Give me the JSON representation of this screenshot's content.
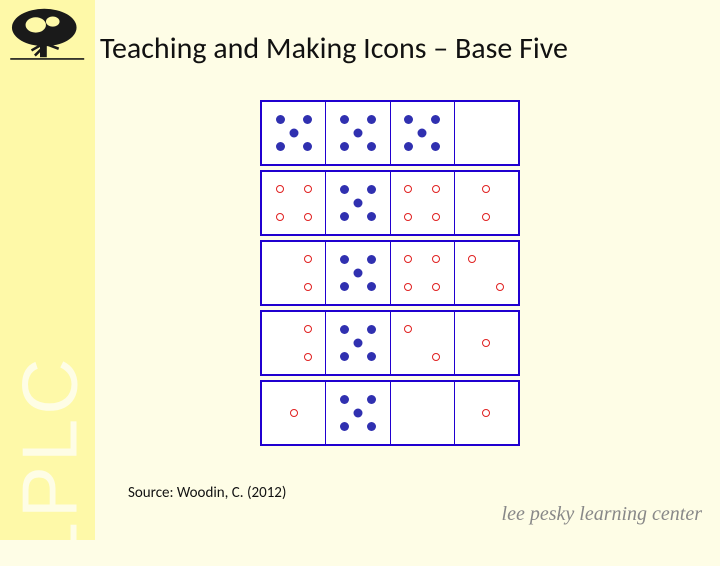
{
  "sidebar": {
    "acronym": "LPLC",
    "acronym_color": "#fefde6",
    "bg_color": "#fef9a8"
  },
  "page": {
    "bg_color": "#fefde6"
  },
  "title": "Teaching and Making Icons – Base Five",
  "source": "Source: Woodin, C. (2012)",
  "footer_logo_text": "lee pesky learning center",
  "diagram": {
    "type": "infographic",
    "border_color": "#2000d0",
    "cell_bg": "#ffffff",
    "filled_dot_color": "#3030b0",
    "open_dot_color": "#e02020",
    "rows": [
      {
        "cells": [
          {
            "pattern": "five",
            "style": "filled"
          },
          {
            "pattern": "five",
            "style": "filled"
          },
          {
            "pattern": "five",
            "style": "filled"
          },
          {
            "pattern": "empty",
            "style": "none"
          }
        ]
      },
      {
        "cells": [
          {
            "pattern": "four-square",
            "style": "open"
          },
          {
            "pattern": "five",
            "style": "filled"
          },
          {
            "pattern": "four-square",
            "style": "open"
          },
          {
            "pattern": "two-vert",
            "style": "open"
          }
        ]
      },
      {
        "cells": [
          {
            "pattern": "two-vert-r",
            "style": "open"
          },
          {
            "pattern": "five",
            "style": "filled"
          },
          {
            "pattern": "four-square",
            "style": "open"
          },
          {
            "pattern": "two-diag",
            "style": "open"
          }
        ]
      },
      {
        "cells": [
          {
            "pattern": "two-vert-r",
            "style": "open"
          },
          {
            "pattern": "five",
            "style": "filled"
          },
          {
            "pattern": "two-diag",
            "style": "open"
          },
          {
            "pattern": "one",
            "style": "open"
          }
        ]
      },
      {
        "cells": [
          {
            "pattern": "one",
            "style": "open"
          },
          {
            "pattern": "five",
            "style": "filled"
          },
          {
            "pattern": "empty",
            "style": "none"
          },
          {
            "pattern": "one",
            "style": "open"
          }
        ]
      }
    ]
  }
}
